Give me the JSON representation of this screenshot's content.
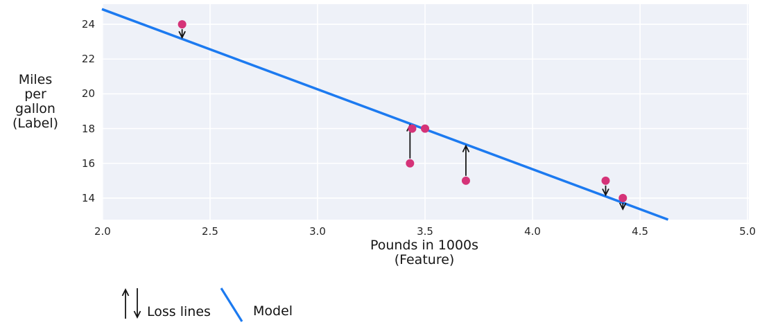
{
  "chart_data": {
    "type": "scatter",
    "title": "",
    "xlabel": "Pounds in 1000s (Feature)",
    "ylabel": "Miles per gallon (Label)",
    "xlabel_lines": [
      "Pounds in 1000s",
      "(Feature)"
    ],
    "ylabel_lines": [
      "Miles",
      "per gallon",
      "(Label)"
    ],
    "xlim": [
      1.997,
      5.006
    ],
    "ylim": [
      12.76,
      25.16
    ],
    "x_ticks": [
      2.0,
      2.5,
      3.0,
      3.5,
      4.0,
      4.5,
      5.0
    ],
    "x_tick_labels": [
      "2.0",
      "2.5",
      "3.0",
      "3.5",
      "4.0",
      "4.5",
      "5.0"
    ],
    "y_ticks": [
      14,
      16,
      18,
      20,
      22,
      24
    ],
    "y_tick_labels": [
      "14",
      "16",
      "18",
      "20",
      "22",
      "24"
    ],
    "grid": true,
    "points": [
      {
        "x": 2.37,
        "y": 24,
        "loss_arrow": "down"
      },
      {
        "x": 3.44,
        "y": 18,
        "loss_arrow": null
      },
      {
        "x": 3.5,
        "y": 18,
        "loss_arrow": null
      },
      {
        "x": 3.43,
        "y": 16,
        "loss_arrow": "up"
      },
      {
        "x": 3.69,
        "y": 15,
        "loss_arrow": "up"
      },
      {
        "x": 4.34,
        "y": 15,
        "loss_arrow": "down"
      },
      {
        "x": 4.42,
        "y": 14,
        "loss_arrow": "down"
      }
    ],
    "model_line": {
      "slope": -4.6,
      "intercept": 34.06
    },
    "legend": {
      "position": "below-left",
      "entries": [
        {
          "symbol": "loss-arrows",
          "label": "Loss lines"
        },
        {
          "symbol": "line",
          "label": "Model"
        }
      ]
    },
    "colors": {
      "point": "#d53378",
      "model_line": "#1c7af0",
      "loss_arrow": "#141414",
      "plot_bg": "#eef1f8",
      "grid": "#ffffff",
      "text": "#161616"
    }
  }
}
